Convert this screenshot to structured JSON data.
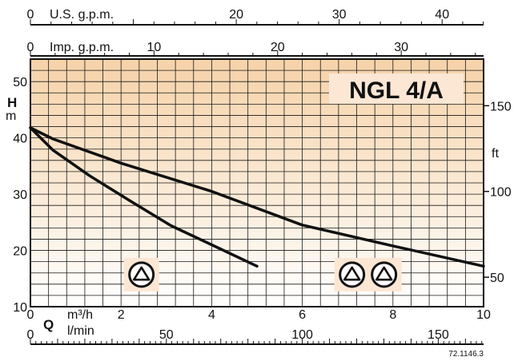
{
  "chart_data": {
    "type": "line",
    "title": "NGL 4/A",
    "x": {
      "label": "Q",
      "unit": "m³/h",
      "ticks": [
        0,
        2,
        4,
        6,
        8,
        10
      ],
      "range": [
        0,
        10
      ]
    },
    "y": {
      "label": "H",
      "unit": "m",
      "ticks": [
        10,
        20,
        30,
        40,
        50
      ],
      "range": [
        10,
        54
      ]
    },
    "y_right": {
      "unit": "ft",
      "ticks": [
        50,
        100,
        150
      ],
      "ft_per_m": 3.28084
    },
    "top_axes": [
      {
        "label": "U.S. g.p.m.",
        "ticks": [
          0,
          20,
          30,
          40
        ],
        "per_m3h": 4.4029
      },
      {
        "label": "Imp. g.p.m.",
        "ticks": [
          0,
          10,
          20,
          30
        ],
        "per_m3h": 3.6662
      }
    ],
    "bottom_secondary": {
      "label": "l/min",
      "ticks": [
        0,
        50,
        100,
        150
      ],
      "per_m3h": 16.6667
    },
    "series": [
      {
        "pumps": 1,
        "x": [
          0,
          0.5,
          1.3,
          2.2,
          3.1,
          4.0,
          5.0
        ],
        "y": [
          41.8,
          37.8,
          33.3,
          28.8,
          24.4,
          21.0,
          17.2
        ]
      },
      {
        "pumps": 2,
        "x": [
          0,
          0.5,
          2,
          4,
          6,
          8,
          10
        ],
        "y": [
          41.8,
          39.8,
          35.5,
          30.5,
          24.5,
          20.8,
          17.2
        ]
      }
    ],
    "pump_labels": [
      {
        "count": 1,
        "x": 2.45,
        "y": 15.7
      },
      {
        "count": 2,
        "x": 7.45,
        "y": 15.7
      }
    ],
    "code": "72.1146.3",
    "grid": true,
    "background": {
      "top": "#f6d2a8",
      "bottom": "#ffffff"
    },
    "colors": {
      "curve": "#111111",
      "grid": "#1a1a1a",
      "title_box": "#fbe7d3"
    }
  }
}
